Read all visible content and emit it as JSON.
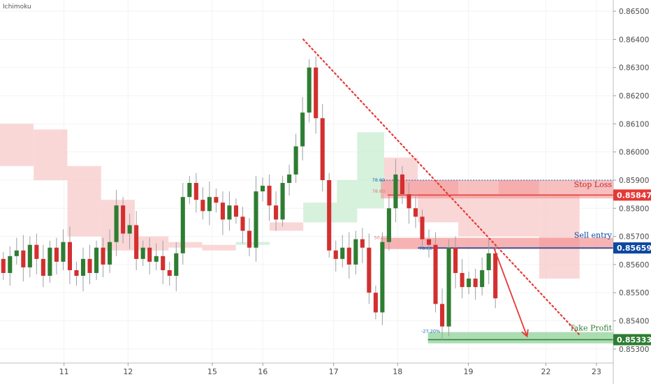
{
  "chart_data": {
    "type": "candlestick",
    "indicator_label": "Ichimoku",
    "y_axis": {
      "range": [
        0.8525,
        0.8654
      ],
      "ticks": [
        "0.86500",
        "0.86400",
        "0.86300",
        "0.86200",
        "0.86100",
        "0.86000",
        "0.85900",
        "0.85800",
        "0.85700",
        "0.85600",
        "0.85500",
        "0.85400",
        "0.85300"
      ]
    },
    "x_axis": {
      "range": [
        0,
        91
      ],
      "ticks": [
        {
          "pos": 9.5,
          "label": "11"
        },
        {
          "pos": 19,
          "label": "12"
        },
        {
          "pos": 31.5,
          "label": "15"
        },
        {
          "pos": 39,
          "label": "16"
        },
        {
          "pos": 49.5,
          "label": "17"
        },
        {
          "pos": 59,
          "label": "18"
        },
        {
          "pos": 69.5,
          "label": "19"
        },
        {
          "pos": 81,
          "label": "22"
        },
        {
          "pos": 88.5,
          "label": "23"
        }
      ]
    },
    "colors": {
      "up": "#2e7d32",
      "down": "#d32f2f",
      "cloud_red": "#f8c9c9",
      "cloud_green": "#c8ecd0",
      "trendline": "#e53935"
    },
    "candles_close": [
      0.8557,
      0.8563,
      0.8565,
      0.8559,
      0.8567,
      0.8562,
      0.8556,
      0.8566,
      0.8561,
      0.8568,
      0.8558,
      0.8556,
      0.8562,
      0.8557,
      0.8566,
      0.856,
      0.8568,
      0.8581,
      0.8571,
      0.8574,
      0.8562,
      0.8566,
      0.8561,
      0.8563,
      0.8558,
      0.8556,
      0.8564,
      0.8584,
      0.8589,
      0.8583,
      0.8579,
      0.8584,
      0.8582,
      0.8576,
      0.8581,
      0.8577,
      0.8572,
      0.8566,
      0.8586,
      0.8588,
      0.8581,
      0.8576,
      0.8589,
      0.8592,
      0.8602,
      0.8614,
      0.863,
      0.8612,
      0.859,
      0.8565,
      0.8562,
      0.8566,
      0.856,
      0.8569,
      0.8566,
      0.855,
      0.8543,
      0.8568,
      0.858,
      0.8592,
      0.8585,
      0.858,
      0.8577,
      0.8569,
      0.8567,
      0.8546,
      0.8538,
      0.8566,
      0.8557,
      0.8552,
      0.8555,
      0.8552,
      0.8558,
      0.8564,
      0.8548
    ],
    "ichimoku_cloud": [
      {
        "x": 0,
        "top": 0.861,
        "bottom": 0.8595
      },
      {
        "x": 5,
        "top": 0.8608,
        "bottom": 0.859
      },
      {
        "x": 10,
        "top": 0.8595,
        "bottom": 0.857
      },
      {
        "x": 15,
        "top": 0.8583,
        "bottom": 0.8565
      },
      {
        "x": 20,
        "top": 0.857,
        "bottom": 0.8565
      },
      {
        "x": 25,
        "top": 0.8568,
        "bottom": 0.8566
      },
      {
        "x": 30,
        "top": 0.8567,
        "bottom": 0.8565
      },
      {
        "x": 35,
        "top": 0.8567,
        "bottom": 0.8568
      },
      {
        "x": 40,
        "top": 0.8575,
        "bottom": 0.8572
      },
      {
        "x": 45,
        "top": 0.8582,
        "bottom": 0.8575
      },
      {
        "x": 50,
        "top": 0.859,
        "bottom": 0.8575
      },
      {
        "x": 53,
        "top": 0.8607,
        "bottom": 0.858
      },
      {
        "x": 57,
        "top": 0.8598,
        "bottom": 0.8585
      },
      {
        "x": 62,
        "top": 0.859,
        "bottom": 0.8575
      },
      {
        "x": 68,
        "top": 0.8585,
        "bottom": 0.857
      },
      {
        "x": 74,
        "top": 0.859,
        "bottom": 0.857
      },
      {
        "x": 80,
        "top": 0.8585,
        "bottom": 0.8555
      },
      {
        "x": 86,
        "top": 0.8575,
        "bottom": 0.8552
      }
    ],
    "trendline": {
      "x1": 45,
      "y1": 0.864,
      "x2": 86,
      "y2": 0.8535
    },
    "arrow": {
      "from": {
        "x": 73.3,
        "y": 0.85659
      },
      "to": {
        "x": 78.2,
        "y": 0.85345
      }
    },
    "levels": [
      {
        "name": "Stop Loss",
        "value": 0.85847,
        "label": "0.85847",
        "color": "#e53935",
        "fib": "78.60%"
      },
      {
        "name": "Sell entry",
        "value": 0.85659,
        "label": "0.85659",
        "color": "#0d47a1",
        "fib": "50.00%"
      },
      {
        "name": "Take Profit",
        "value": 0.85333,
        "label": "0.85333",
        "color": "#2e7d32",
        "fib": "-27.20%"
      }
    ],
    "zone_labels": {
      "stop_fib_a": "78.60",
      "stop_fib_b": "78.60",
      "entry_fib": "50.00%",
      "entry_fib_b": "78.60",
      "tp_fib": "-27.20%"
    }
  }
}
